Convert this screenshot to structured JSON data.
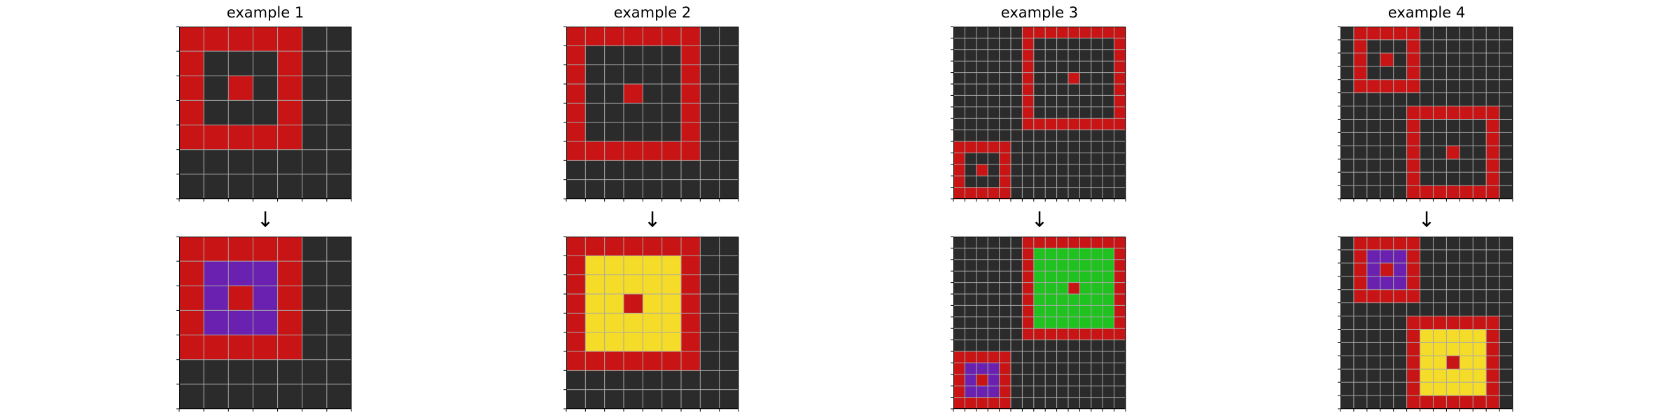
{
  "colors": {
    "0": "#2b2b2b",
    "2": "#c81414",
    "3": "#1fc21f",
    "4": "#f5dc28",
    "8": "#6a21b0",
    "gridline": "#a8a8a8"
  },
  "arrow": "↓",
  "examples": [
    {
      "title": "example 1",
      "input": [
        "2222200",
        "2000200",
        "2020200",
        "2000200",
        "2222200",
        "0000000",
        "0000000"
      ],
      "output": [
        "2222200",
        "2888200",
        "2828200",
        "2888200",
        "2222200",
        "0000000",
        "0000000"
      ]
    },
    {
      "title": "example 2",
      "input": [
        "222222200",
        "200000200",
        "200000200",
        "200200200",
        "200000200",
        "200000200",
        "222222200",
        "000000000",
        "000000000"
      ],
      "output": [
        "222222200",
        "244444200",
        "244444200",
        "244244200",
        "244444200",
        "244444200",
        "222222200",
        "000000000",
        "000000000"
      ]
    },
    {
      "title": "example 3",
      "input": [
        "000000222222222",
        "000000200000002",
        "000000200000002",
        "000000200000002",
        "000000200020002",
        "000000200000002",
        "000000200000002",
        "000000200000002",
        "000000222222222",
        "000000000000000",
        "222220000000000",
        "200020000000000",
        "202020000000000",
        "200020000000000",
        "222220000000000"
      ],
      "output": [
        "000000222222222",
        "000000233333332",
        "000000233333332",
        "000000233333332",
        "000000233323332",
        "000000233333332",
        "000000233333332",
        "000000233333332",
        "000000222222222",
        "000000000000000",
        "222220000000000",
        "288820000000000",
        "282820000000000",
        "288820000000000",
        "222220000000000"
      ]
    },
    {
      "title": "example 4",
      "input": [
        "0222220000000",
        "0200020000000",
        "0202020000000",
        "0200020000000",
        "0222220000000",
        "0000000000000",
        "0000022222220",
        "0000020000020",
        "0000020000020",
        "0000020020020",
        "0000020000020",
        "0000020000020",
        "0000022222220"
      ],
      "output": [
        "0222220000000",
        "0288820000000",
        "0282820000000",
        "0288820000000",
        "0222220000000",
        "0000000000000",
        "0000022222220",
        "0000024444420",
        "0000024444420",
        "0000024424420",
        "0000024444420",
        "0000024444420",
        "0000022222220"
      ]
    }
  ]
}
